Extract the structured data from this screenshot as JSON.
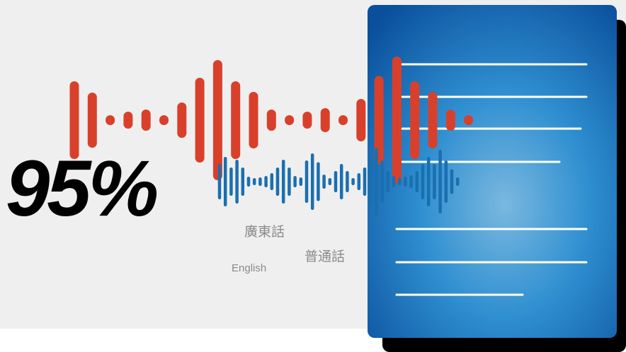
{
  "headline": "95%",
  "languages": [
    "廣東話",
    "普通話",
    "English"
  ]
}
